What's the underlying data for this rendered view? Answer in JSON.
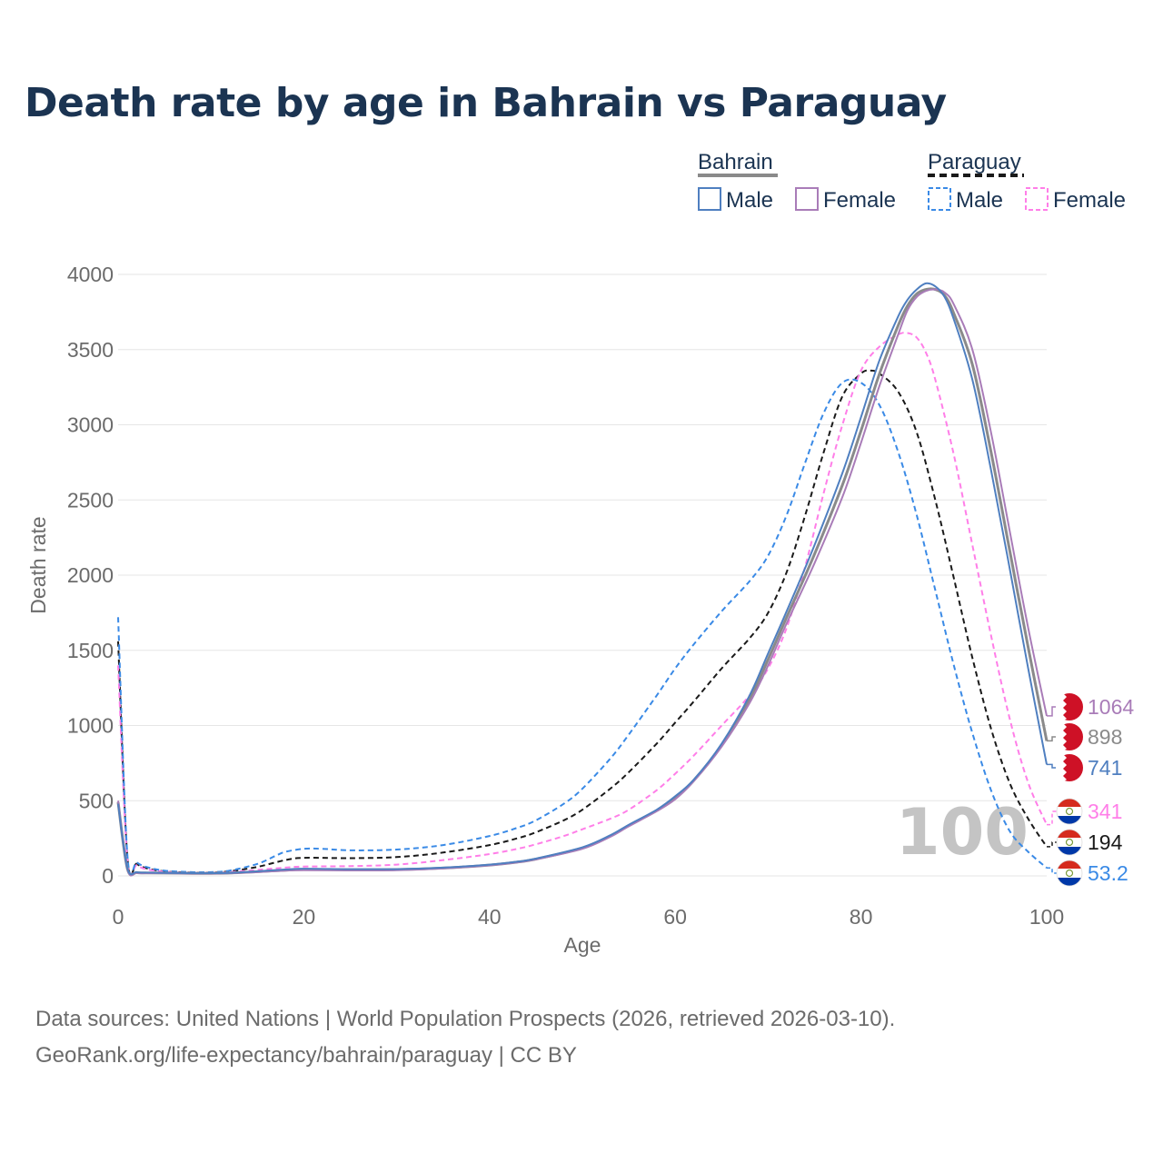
{
  "title": "Death rate by age in Bahrain vs Paraguay",
  "footer": {
    "line1": "Data sources: United Nations | World Population Prospects (2026, retrieved 2026-03-10).",
    "line2": "GeoRank.org/life-expectancy/bahrain/paraguay | CC BY"
  },
  "watermark": "100",
  "legend": {
    "groups": [
      {
        "label": "Bahrain",
        "items": [
          "Male",
          "Female"
        ]
      },
      {
        "label": "Paraguay",
        "items": [
          "Male",
          "Female"
        ]
      }
    ]
  },
  "end_labels": [
    {
      "text": "1064",
      "country": "Bahrain",
      "color": "#a97cb8"
    },
    {
      "text": "898",
      "country": "Bahrain",
      "color": "#8a8a8a"
    },
    {
      "text": "741",
      "country": "Bahrain",
      "color": "#4f7fc0"
    },
    {
      "text": "341",
      "country": "Paraguay",
      "color": "#ff7ee8"
    },
    {
      "text": "194",
      "country": "Paraguay",
      "color": "#1a1a1a"
    },
    {
      "text": "53.2",
      "country": "Paraguay",
      "color": "#3a8ae6"
    }
  ],
  "chart_data": {
    "type": "line",
    "title": "Death rate by age in Bahrain vs Paraguay",
    "xlabel": "Age",
    "ylabel": "Death rate",
    "xlim": [
      0,
      100
    ],
    "ylim": [
      0,
      4000
    ],
    "xticks": [
      0,
      20,
      40,
      60,
      80,
      100
    ],
    "yticks": [
      0,
      500,
      1000,
      1500,
      2000,
      2500,
      3000,
      3500,
      4000
    ],
    "series": [
      {
        "name": "Bahrain Male",
        "color": "#4f7fc0",
        "dash": false,
        "width": 2,
        "x": [
          0,
          1,
          2,
          3,
          5,
          8,
          10,
          12,
          15,
          18,
          20,
          25,
          30,
          35,
          40,
          43,
          45,
          50,
          53,
          55,
          58,
          60,
          62,
          65,
          68,
          70,
          72,
          75,
          78,
          80,
          82,
          84,
          85,
          86,
          87,
          88,
          89,
          90,
          92,
          94,
          96,
          98,
          100
        ],
        "y": [
          480,
          50,
          25,
          22,
          20,
          18,
          18,
          20,
          30,
          42,
          48,
          45,
          45,
          55,
          75,
          95,
          115,
          190,
          270,
          340,
          440,
          530,
          640,
          880,
          1200,
          1480,
          1760,
          2200,
          2680,
          3050,
          3430,
          3720,
          3830,
          3900,
          3940,
          3920,
          3850,
          3700,
          3300,
          2700,
          2050,
          1380,
          741
        ]
      },
      {
        "name": "Bahrain Female",
        "color": "#a97cb8",
        "dash": false,
        "width": 2,
        "x": [
          0,
          1,
          2,
          3,
          5,
          8,
          10,
          12,
          15,
          18,
          20,
          25,
          30,
          35,
          40,
          43,
          45,
          50,
          53,
          55,
          58,
          60,
          62,
          65,
          68,
          70,
          72,
          75,
          78,
          80,
          82,
          84,
          85,
          86,
          87,
          88,
          89,
          90,
          92,
          94,
          96,
          98,
          100
        ],
        "y": [
          500,
          45,
          20,
          18,
          18,
          16,
          16,
          18,
          25,
          35,
          38,
          36,
          38,
          50,
          70,
          90,
          110,
          180,
          260,
          330,
          430,
          510,
          630,
          860,
          1150,
          1400,
          1680,
          2080,
          2520,
          2880,
          3260,
          3600,
          3760,
          3850,
          3890,
          3900,
          3880,
          3800,
          3500,
          2950,
          2300,
          1650,
          1064
        ]
      },
      {
        "name": "Bahrain Total",
        "color": "#8a8a8a",
        "dash": false,
        "width": 3,
        "x": [
          0,
          1,
          2,
          3,
          5,
          8,
          10,
          12,
          15,
          18,
          20,
          25,
          30,
          35,
          40,
          43,
          45,
          50,
          53,
          55,
          58,
          60,
          62,
          65,
          68,
          70,
          72,
          75,
          78,
          80,
          82,
          84,
          85,
          86,
          87,
          88,
          89,
          90,
          92,
          94,
          96,
          98,
          100
        ],
        "y": [
          490,
          48,
          22,
          20,
          19,
          17,
          17,
          19,
          28,
          38,
          43,
          41,
          42,
          52,
          72,
          92,
          112,
          185,
          265,
          335,
          435,
          520,
          635,
          870,
          1175,
          1440,
          1720,
          2140,
          2600,
          2960,
          3340,
          3660,
          3790,
          3870,
          3900,
          3900,
          3860,
          3740,
          3400,
          2820,
          2170,
          1520,
          898
        ]
      },
      {
        "name": "Paraguay Male",
        "color": "#3a8ae6",
        "dash": true,
        "width": 2,
        "x": [
          0,
          1,
          2,
          3,
          5,
          8,
          10,
          12,
          15,
          17,
          18,
          20,
          22,
          25,
          30,
          35,
          40,
          43,
          45,
          48,
          50,
          53,
          55,
          58,
          60,
          62,
          65,
          68,
          70,
          72,
          74,
          76,
          78,
          80,
          82,
          84,
          86,
          88,
          90,
          92,
          94,
          96,
          98,
          100
        ],
        "y": [
          1720,
          140,
          90,
          60,
          35,
          25,
          25,
          35,
          80,
          135,
          160,
          180,
          180,
          170,
          175,
          205,
          265,
          320,
          370,
          480,
          580,
          780,
          940,
          1200,
          1380,
          1540,
          1760,
          1960,
          2130,
          2400,
          2750,
          3080,
          3280,
          3280,
          3130,
          2820,
          2400,
          1900,
          1400,
          950,
          570,
          300,
          160,
          53.2
        ]
      },
      {
        "name": "Paraguay Female",
        "color": "#ff7ee8",
        "dash": true,
        "width": 2,
        "x": [
          0,
          1,
          2,
          3,
          5,
          8,
          10,
          12,
          15,
          18,
          20,
          25,
          30,
          35,
          40,
          43,
          45,
          48,
          50,
          53,
          55,
          58,
          60,
          62,
          65,
          68,
          70,
          72,
          74,
          76,
          78,
          80,
          82,
          84,
          85,
          86,
          87,
          88,
          90,
          92,
          94,
          96,
          98,
          100
        ],
        "y": [
          1400,
          110,
          70,
          45,
          28,
          20,
          20,
          25,
          40,
          55,
          62,
          65,
          75,
          105,
          145,
          180,
          210,
          265,
          310,
          380,
          440,
          570,
          680,
          800,
          1000,
          1200,
          1380,
          1650,
          2060,
          2550,
          3000,
          3360,
          3520,
          3600,
          3610,
          3580,
          3480,
          3300,
          2800,
          2200,
          1600,
          1050,
          620,
          341
        ]
      },
      {
        "name": "Paraguay Total",
        "color": "#1a1a1a",
        "dash": true,
        "width": 2,
        "x": [
          0,
          1,
          2,
          3,
          5,
          8,
          10,
          12,
          15,
          18,
          20,
          25,
          30,
          35,
          40,
          43,
          45,
          48,
          50,
          53,
          55,
          58,
          60,
          62,
          65,
          68,
          70,
          72,
          74,
          76,
          78,
          80,
          81,
          82,
          84,
          86,
          88,
          90,
          92,
          94,
          96,
          98,
          100
        ],
        "y": [
          1560,
          125,
          80,
          52,
          30,
          22,
          22,
          30,
          60,
          105,
          120,
          118,
          125,
          155,
          205,
          250,
          290,
          370,
          440,
          580,
          690,
          880,
          1020,
          1160,
          1380,
          1580,
          1750,
          2020,
          2400,
          2820,
          3190,
          3340,
          3360,
          3340,
          3220,
          2950,
          2500,
          1980,
          1450,
          980,
          620,
          380,
          194
        ]
      }
    ]
  }
}
